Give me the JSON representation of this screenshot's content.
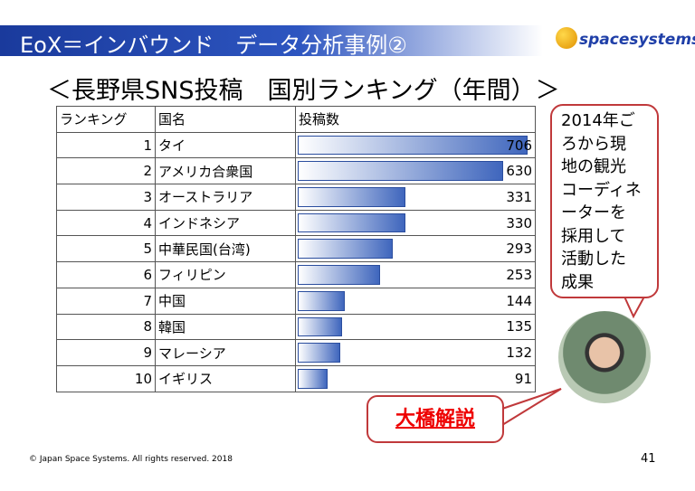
{
  "header": {
    "title": "EoX＝インバウンド　データ分析事例②",
    "logo": "spacesystems"
  },
  "subtitle": "＜長野県SNS投稿　国別ランキング（年間）＞",
  "table": {
    "columns": [
      "ランキング",
      "国名",
      "投稿数"
    ],
    "rows": [
      {
        "rank": 1,
        "country": "タイ",
        "posts": 706
      },
      {
        "rank": 2,
        "country": "アメリカ合衆国",
        "posts": 630
      },
      {
        "rank": 3,
        "country": "オーストラリア",
        "posts": 331
      },
      {
        "rank": 4,
        "country": "インドネシア",
        "posts": 330
      },
      {
        "rank": 5,
        "country": "中華民国(台湾)",
        "posts": 293
      },
      {
        "rank": 6,
        "country": "フィリピン",
        "posts": 253
      },
      {
        "rank": 7,
        "country": "中国",
        "posts": 144
      },
      {
        "rank": 8,
        "country": "韓国",
        "posts": 135
      },
      {
        "rank": 9,
        "country": "マレーシア",
        "posts": 132
      },
      {
        "rank": 10,
        "country": "イギリス",
        "posts": 91
      }
    ]
  },
  "bubble": {
    "lines": [
      "2014年ご",
      "ろから現",
      "地の観光",
      "コーディネ",
      "ーターを",
      "採用して",
      "活動した",
      "成果"
    ]
  },
  "callout": "大橋解説",
  "footer": {
    "copyright": "© Japan Space Systems. All rights reserved. 2018",
    "page": "41"
  }
}
